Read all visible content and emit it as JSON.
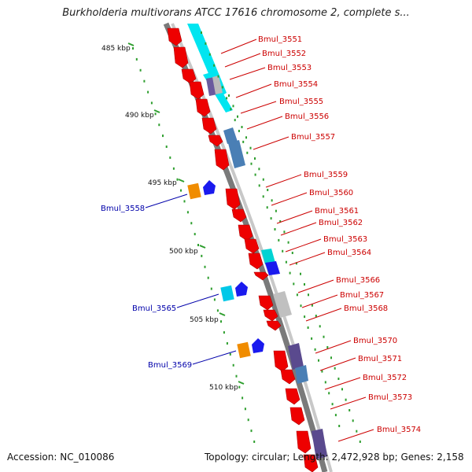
{
  "title": "Burkholderia multivorans ATCC 17616 chromosome 2, complete s...",
  "accession_label": "Accession: NC_010086",
  "topology_text": "Topology: circular; Length: 2,472,928 bp; Genes: 2,158",
  "colors": {
    "backbone": "#8a8a8a",
    "top_label": "#cc0000",
    "bottom_label": "#0000aa",
    "tick": "#2e9e2e"
  },
  "scale_ticks": [
    {
      "label": "485 kbp"
    },
    {
      "label": "490 kbp"
    },
    {
      "label": "495 kbp"
    },
    {
      "label": "500 kbp"
    },
    {
      "label": "505 kbp"
    },
    {
      "label": "510 kbp"
    }
  ],
  "top_genes": [
    "Bmul_3551",
    "Bmul_3552",
    "Bmul_3553",
    "Bmul_3554",
    "Bmul_3555",
    "Bmul_3556",
    "Bmul_3557",
    "Bmul_3559",
    "Bmul_3560",
    "Bmul_3561",
    "Bmul_3562",
    "Bmul_3563",
    "Bmul_3564",
    "Bmul_3566",
    "Bmul_3567",
    "Bmul_3568",
    "Bmul_3570",
    "Bmul_3571",
    "Bmul_3572",
    "Bmul_3573",
    "Bmul_3574"
  ],
  "bottom_genes": [
    "Bmul_3558",
    "Bmul_3565",
    "Bmul_3569"
  ]
}
